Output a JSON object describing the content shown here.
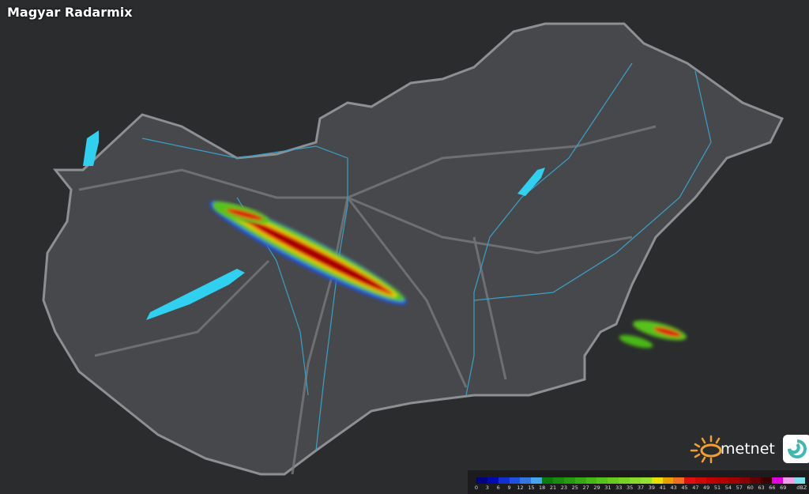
{
  "title": "Magyar Radarmix",
  "legend": {
    "unit": "dBZ",
    "labels": [
      "0",
      "3",
      "6",
      "9",
      "12",
      "15",
      "18",
      "21",
      "23",
      "25",
      "27",
      "29",
      "31",
      "33",
      "35",
      "37",
      "39",
      "41",
      "43",
      "45",
      "47",
      "49",
      "51",
      "54",
      "57",
      "60",
      "63",
      "66",
      "69"
    ],
    "colors": [
      "#000080",
      "#0008b0",
      "#1030d0",
      "#2050e0",
      "#3575e0",
      "#45a5f0",
      "#0d7a10",
      "#1a8a10",
      "#289a12",
      "#35aa14",
      "#48b818",
      "#58c21c",
      "#68ca20",
      "#78d226",
      "#88da2c",
      "#98e030",
      "#e8e000",
      "#e8a000",
      "#f07020",
      "#e01010",
      "#d00808",
      "#c00000",
      "#b00000",
      "#a00000",
      "#880000",
      "#600000",
      "#3a0000",
      "#e000e0",
      "#f0a0e8",
      "#80e0e8"
    ]
  },
  "logo": {
    "text": "metnet",
    "sun_color": "#f0a030",
    "badge_color": "#3fb8b0"
  },
  "colors": {
    "background": "#2b2c2e",
    "country": "#4a4b4e",
    "border": "#8a8c90",
    "roads": "#77797c",
    "rivers": "#3aa0c8",
    "lakes": "#2fd0f0"
  }
}
